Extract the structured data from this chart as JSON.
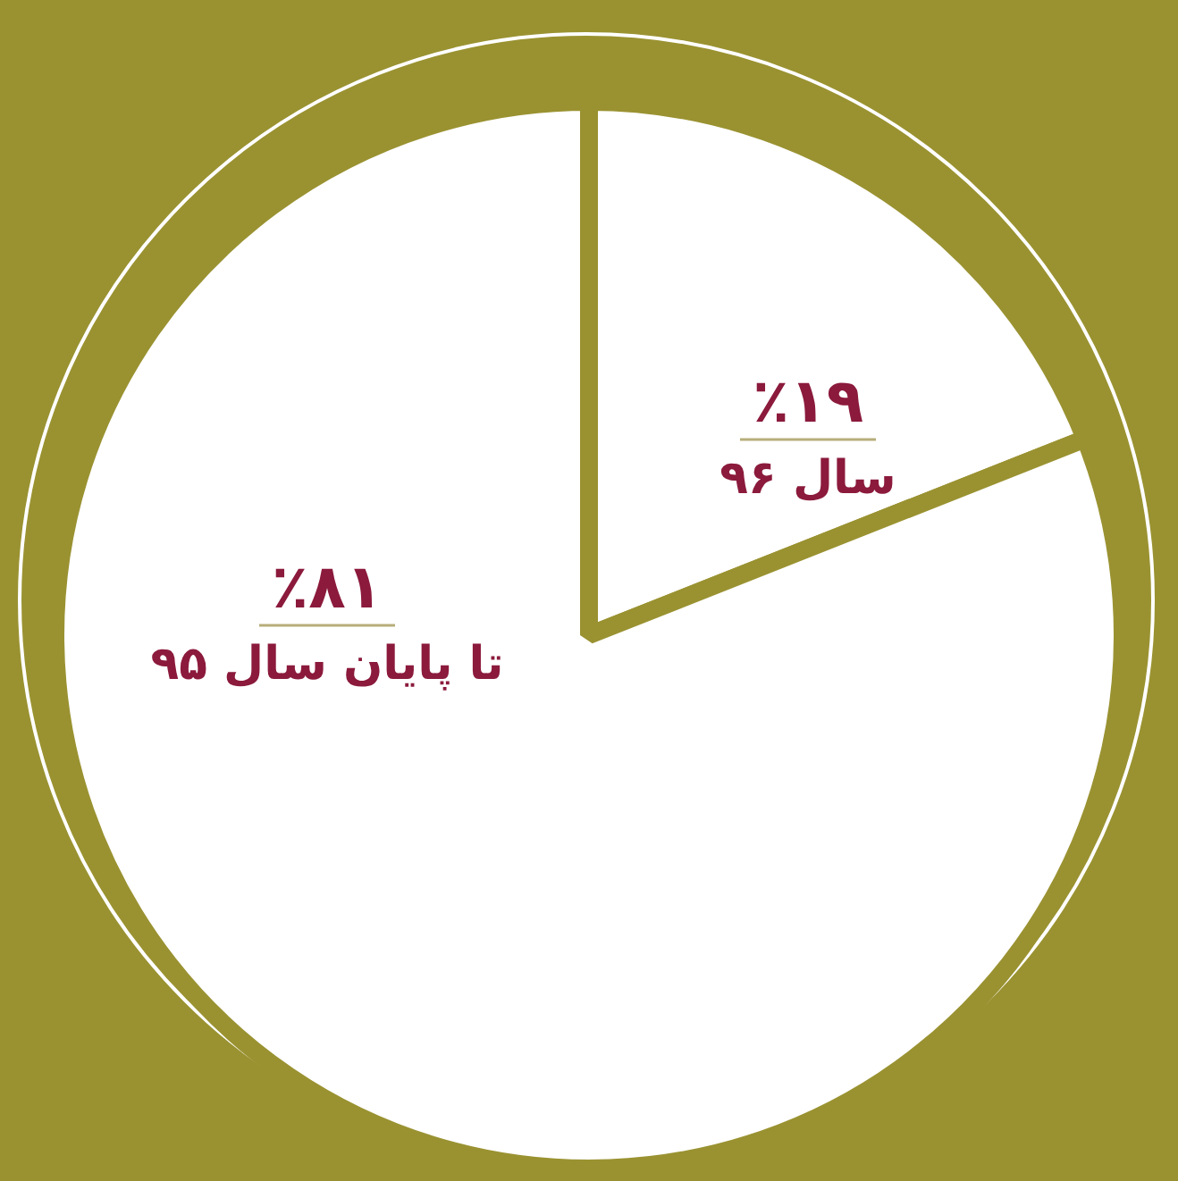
{
  "chart_data": {
    "type": "pie",
    "categories": [
      "سال ۹۶",
      "تا پایان سال ۹۵"
    ],
    "values": [
      19,
      81
    ],
    "colors": [
      "#ffffff",
      "#ffffff"
    ],
    "value_labels": [
      "٪۱۹",
      "٪۸۱"
    ],
    "legend": false
  }
}
